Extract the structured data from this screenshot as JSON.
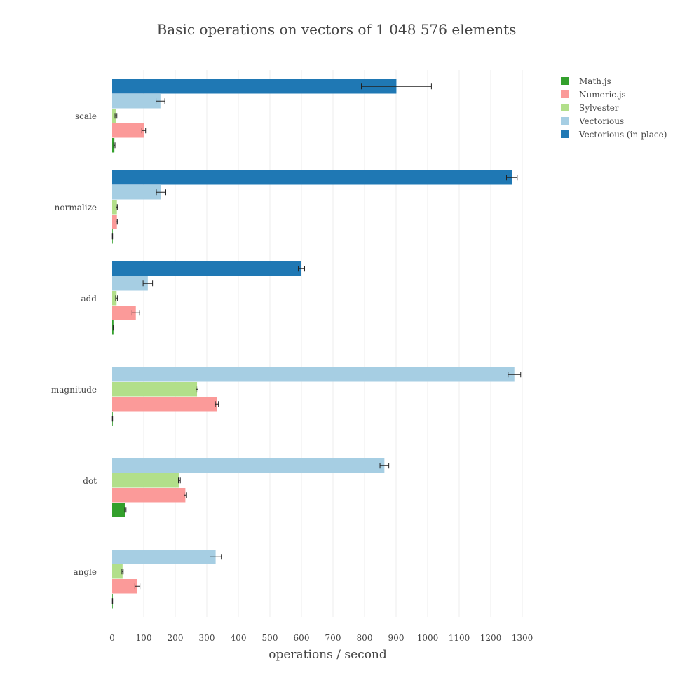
{
  "chart_data": {
    "type": "bar",
    "orientation": "horizontal",
    "title": "Basic operations on vectors of 1 048 576 elements",
    "xlabel": "operations / second",
    "ylabel": "",
    "xlim": [
      0,
      1300
    ],
    "x_ticks": [
      0,
      100,
      200,
      300,
      400,
      500,
      600,
      700,
      800,
      900,
      1000,
      1100,
      1200,
      1300
    ],
    "grid": true,
    "legend_position": "top-right",
    "categories": [
      "scale",
      "normalize",
      "add",
      "magnitude",
      "dot",
      "angle"
    ],
    "series": [
      {
        "name": "Math.js",
        "color": "#33a02c",
        "values": [
          7,
          1,
          4,
          1,
          42,
          1
        ],
        "errors": [
          2,
          0.5,
          1,
          0.5,
          2,
          0.5
        ]
      },
      {
        "name": "Numeric.js",
        "color": "#fb9a99",
        "values": [
          100,
          15,
          75,
          332,
          232,
          80
        ],
        "errors": [
          6,
          2,
          12,
          5,
          4,
          8
        ]
      },
      {
        "name": "Sylvester",
        "color": "#b2df8a",
        "values": [
          12,
          15,
          14,
          269,
          213,
          33
        ],
        "errors": [
          3,
          2,
          3,
          3,
          3,
          2
        ]
      },
      {
        "name": "Vectorious",
        "color": "#a6cee3",
        "values": [
          153,
          155,
          113,
          1275,
          863,
          328
        ],
        "errors": [
          14,
          15,
          15,
          20,
          14,
          18
        ]
      },
      {
        "name": "Vectorious (in-place)",
        "color": "#1f78b4",
        "values": [
          901,
          1267,
          600,
          null,
          null,
          null
        ],
        "errors": [
          111,
          17,
          10,
          null,
          null,
          null
        ]
      }
    ]
  }
}
